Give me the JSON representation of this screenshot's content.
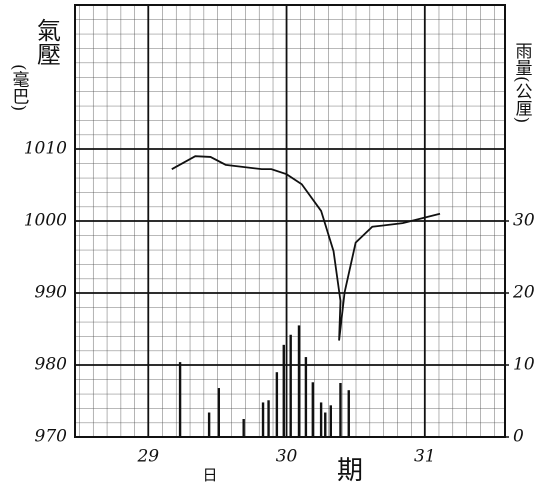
{
  "chart_data": {
    "type": "combo",
    "ylabel": "氣壓",
    "ylabel_unit": "(毫巴)",
    "y2label": "雨量(公厘)",
    "xlabel": [
      "日",
      "期"
    ],
    "xlim": [
      28.47,
      31.58
    ],
    "xticks": [
      29,
      30,
      31
    ],
    "ylim": [
      970,
      1030
    ],
    "yticks": [
      970,
      980,
      990,
      1000,
      1010
    ],
    "y2lim": [
      0,
      60
    ],
    "y2ticks": [
      0,
      10,
      20,
      30
    ],
    "grid": true,
    "series": [
      {
        "type": "line",
        "color": "#111111",
        "x": [
          29.17,
          29.34,
          29.45,
          29.56,
          29.82,
          29.89,
          30.0,
          30.11,
          30.25,
          30.34,
          30.39,
          30.38,
          30.42,
          30.5,
          30.62,
          30.84,
          31.11
        ],
        "values": [
          1007.2,
          1009.0,
          1008.9,
          1007.8,
          1007.2,
          1007.2,
          1006.5,
          1005.1,
          1001.4,
          995.8,
          988.9,
          983.4,
          990.1,
          997.0,
          999.2,
          999.7,
          1001.0
        ]
      },
      {
        "type": "bar",
        "axis": "y2",
        "color": "#111111",
        "x": [
          29.23,
          29.44,
          29.51,
          29.69,
          29.83,
          29.87,
          29.93,
          29.98,
          30.03,
          30.09,
          30.14,
          30.19,
          30.25,
          30.28,
          30.32,
          30.39,
          30.45
        ],
        "values": [
          10.4,
          3.4,
          6.8,
          2.5,
          4.8,
          5.1,
          9.0,
          12.8,
          14.2,
          15.5,
          11.1,
          7.6,
          4.8,
          3.4,
          4.4,
          7.5,
          6.5
        ]
      }
    ]
  }
}
